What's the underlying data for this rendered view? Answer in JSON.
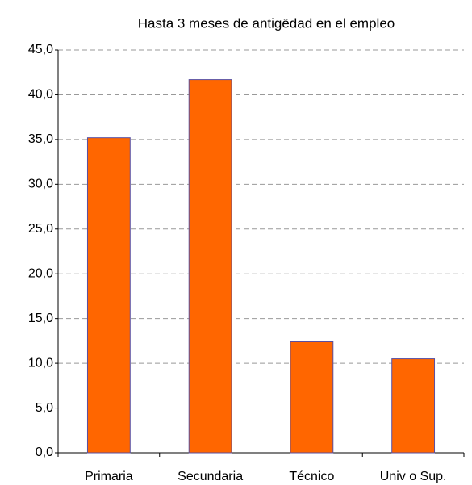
{
  "chart_data": {
    "type": "bar",
    "title": "Hasta 3 meses de antigëdad en el empleo",
    "categories": [
      "Primaria",
      "Secundaria",
      "Técnico",
      "Univ o Sup."
    ],
    "values": [
      35.2,
      41.7,
      12.4,
      10.5
    ],
    "color": "#ff6600",
    "ylim": [
      0,
      45
    ],
    "yticks": [
      {
        "value": 0,
        "label": "0,0"
      },
      {
        "value": 5,
        "label": "5,0"
      },
      {
        "value": 10,
        "label": "10,0"
      },
      {
        "value": 15,
        "label": "15,0"
      },
      {
        "value": 20,
        "label": "20,0"
      },
      {
        "value": 25,
        "label": "25,0"
      },
      {
        "value": 30,
        "label": "30,0"
      },
      {
        "value": 35,
        "label": "35,0"
      },
      {
        "value": 40,
        "label": "40,0"
      },
      {
        "value": 45,
        "label": "45,0"
      }
    ],
    "grid": true
  }
}
